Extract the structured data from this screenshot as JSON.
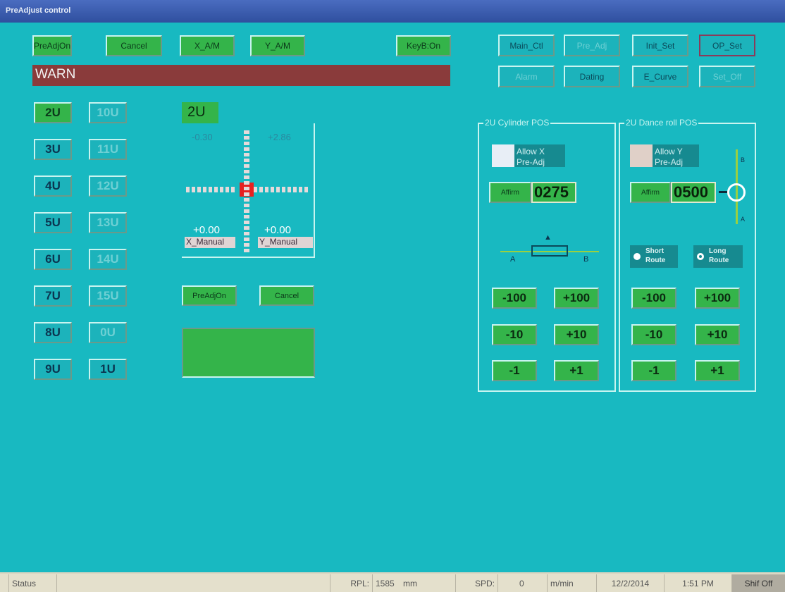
{
  "window": {
    "title": "PreAdjust control"
  },
  "toolbar": {
    "preadj_on": "PreAdjOn",
    "cancel": "Cancel",
    "x_am": "X_A/M",
    "y_am": "Y_A/M",
    "keyb_on": "KeyB:On"
  },
  "warn": {
    "text": "WARN",
    "color": "#8a3b3b"
  },
  "nav": {
    "row1": [
      {
        "label": "Main_Ctl",
        "enabled": true
      },
      {
        "label": "Pre_Adj",
        "enabled": false
      },
      {
        "label": "Init_Set",
        "enabled": true
      },
      {
        "label": "OP_Set",
        "enabled": true,
        "active": true
      }
    ],
    "row2": [
      {
        "label": "Alarm",
        "enabled": false
      },
      {
        "label": "Dating",
        "enabled": true
      },
      {
        "label": "E_Curve",
        "enabled": true
      },
      {
        "label": "Set_Off",
        "enabled": false
      }
    ]
  },
  "units": {
    "col1": [
      "2U",
      "3U",
      "4U",
      "5U",
      "6U",
      "7U",
      "8U",
      "9U"
    ],
    "col2": [
      "10U",
      "11U",
      "12U",
      "13U",
      "14U",
      "15U",
      "0U",
      "1U"
    ],
    "selected": "2U"
  },
  "position_panel": {
    "unit": "2U",
    "x_value": "-0.30",
    "y_value": "+2.86",
    "x_manual_value": "+0.00",
    "y_manual_value": "+0.00",
    "x_manual_label": "X_Manual",
    "y_manual_label": "Y_Manual",
    "preadj_on": "PreAdjOn",
    "cancel": "Cancel"
  },
  "cylinder": {
    "title": "2U Cylinder POS",
    "allow_label": "Allow X Pre-Adj",
    "affirm": "Affirm",
    "value": "0275",
    "label_a": "A",
    "label_b": "B",
    "steps": [
      "-100",
      "+100",
      "-10",
      "+10",
      "-1",
      "+1"
    ]
  },
  "dance": {
    "title": "2U Dance roll POS",
    "allow_label": "Allow Y Pre-Adj",
    "affirm": "Affirm",
    "value": "0500",
    "label_a": "A",
    "label_b": "B",
    "short_route": "Short Route",
    "long_route": "Long Route",
    "selected_route": "long",
    "steps": [
      "-100",
      "+100",
      "-10",
      "+10",
      "-1",
      "+1"
    ]
  },
  "status": {
    "label": "Status",
    "rpl_label": "RPL:",
    "rpl_value": "1585",
    "rpl_unit": "mm",
    "spd_label": "SPD:",
    "spd_value": "0",
    "spd_unit": "m/min",
    "date": "12/2/2014",
    "time": "1:51 PM",
    "shift": "Shif Off"
  }
}
